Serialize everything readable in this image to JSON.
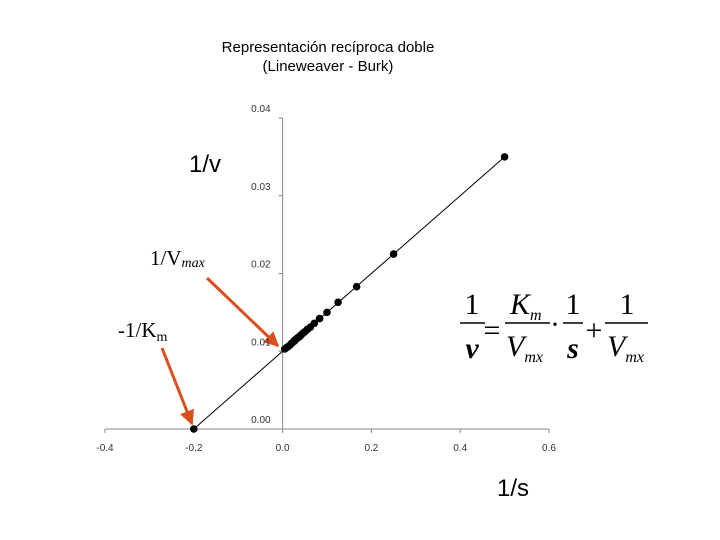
{
  "chart_data": {
    "type": "scatter",
    "title": "Representación recíproca doble",
    "subtitle": "(Lineweaver - Burk)",
    "y_label": "1/v",
    "x_label": "1/s",
    "color": "#000000",
    "x": [
      -0.2,
      0.5,
      0.25,
      0.1667,
      0.125,
      0.1,
      0.0833,
      0.0714,
      0.0625,
      0.0556,
      0.05,
      0.0455,
      0.0417,
      0.0385,
      0.0357,
      0.0333,
      0.0313,
      0.0294,
      0.0278,
      0.0263,
      0.025,
      0.02,
      0.0167,
      0.0125,
      0.01,
      0.005
    ],
    "values": [
      0,
      0.035,
      0.0225,
      0.0183,
      0.0163,
      0.015,
      0.0142,
      0.0136,
      0.0131,
      0.0128,
      0.0125,
      0.0123,
      0.0121,
      0.0119,
      0.0118,
      0.0117,
      0.0116,
      0.0115,
      0.0114,
      0.0113,
      0.0113,
      0.011,
      0.0108,
      0.0106,
      0.0105,
      0.0103
    ],
    "fit_line": {
      "x": [
        -0.2,
        0.5
      ],
      "values": [
        0,
        0.035
      ],
      "color": "#000000"
    },
    "xlim": [
      -0.4,
      0.6
    ],
    "ylim": [
      0,
      0.04
    ],
    "xticks": [
      -0.4,
      -0.2,
      {
        "value": 0,
        "label": "0.0"
      },
      0.2,
      0.4,
      0.6
    ],
    "yticks": [
      {
        "value": 0,
        "label": "0.00"
      },
      0.01,
      0.02,
      0.03,
      0.04
    ],
    "annotations": {
      "vmax": {
        "main": "1/V",
        "sub": "max"
      },
      "km": {
        "main": "-1/K",
        "sub": "m"
      },
      "arrow_color": "#d9501e"
    },
    "equation": {
      "lhs_num": "1",
      "lhs_den": "v",
      "eq": "=",
      "t1_num": "K",
      "t1_num_sub": "m",
      "t1_den": "V",
      "t1_den_sub": "mx",
      "dot": "·",
      "t2_num": "1",
      "t2_den": "s",
      "plus": "+",
      "t3_num": "1",
      "t3_den": "V",
      "t3_den_sub": "mx"
    }
  }
}
